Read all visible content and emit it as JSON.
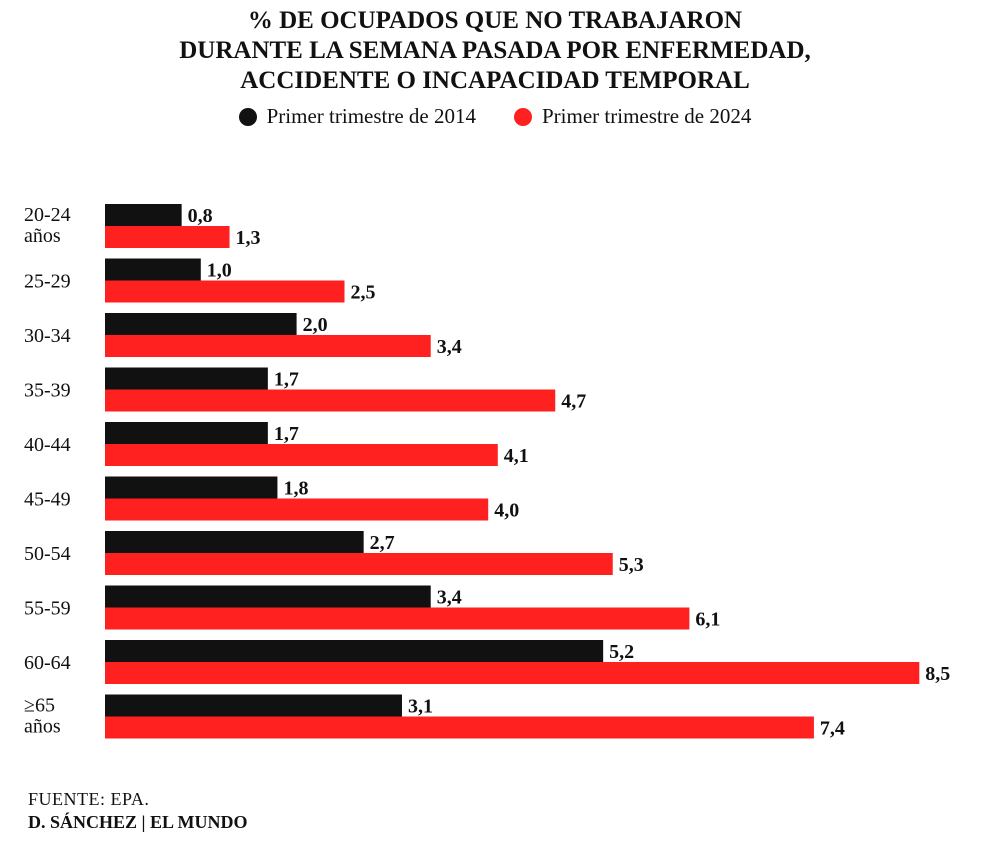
{
  "title_lines": [
    "% DE OCUPADOS QUE NO TRABAJARON",
    "DURANTE LA SEMANA PASADA POR ENFERMEDAD,",
    "ACCIDENTE O INCAPACIDAD TEMPORAL"
  ],
  "source": "FUENTE: EPA.",
  "credit": "D. SÁNCHEZ | EL MUNDO",
  "colors": {
    "series_2014": "#111111",
    "series_2024": "#ff2020",
    "text": "#111111"
  },
  "chart_data": {
    "type": "bar",
    "orientation": "horizontal",
    "categories": [
      [
        "20-24",
        "años"
      ],
      [
        "25-29"
      ],
      [
        "30-34"
      ],
      [
        "35-39"
      ],
      [
        "40-44"
      ],
      [
        "45-49"
      ],
      [
        "50-54"
      ],
      [
        "55-59"
      ],
      [
        "60-64"
      ],
      [
        "≥65",
        "años"
      ]
    ],
    "series": [
      {
        "name": "Primer trimestre de 2014",
        "color": "#111111",
        "values": [
          0.8,
          1.0,
          2.0,
          1.7,
          1.7,
          1.8,
          2.7,
          3.4,
          5.2,
          3.1
        ],
        "labels": [
          "0,8",
          "1,0",
          "2,0",
          "1,7",
          "1,7",
          "1,8",
          "2,7",
          "3,4",
          "5,2",
          "3,1"
        ]
      },
      {
        "name": "Primer trimestre de 2024",
        "color": "#ff2020",
        "values": [
          1.3,
          2.5,
          3.4,
          4.7,
          4.1,
          4.0,
          5.3,
          6.1,
          8.5,
          7.4
        ],
        "labels": [
          "1,3",
          "2,5",
          "3,4",
          "4,7",
          "4,1",
          "4,0",
          "5,3",
          "6,1",
          "8,5",
          "7,4"
        ]
      }
    ],
    "legend_position": "top",
    "grid": false,
    "xlim": [
      0,
      8.5
    ]
  }
}
